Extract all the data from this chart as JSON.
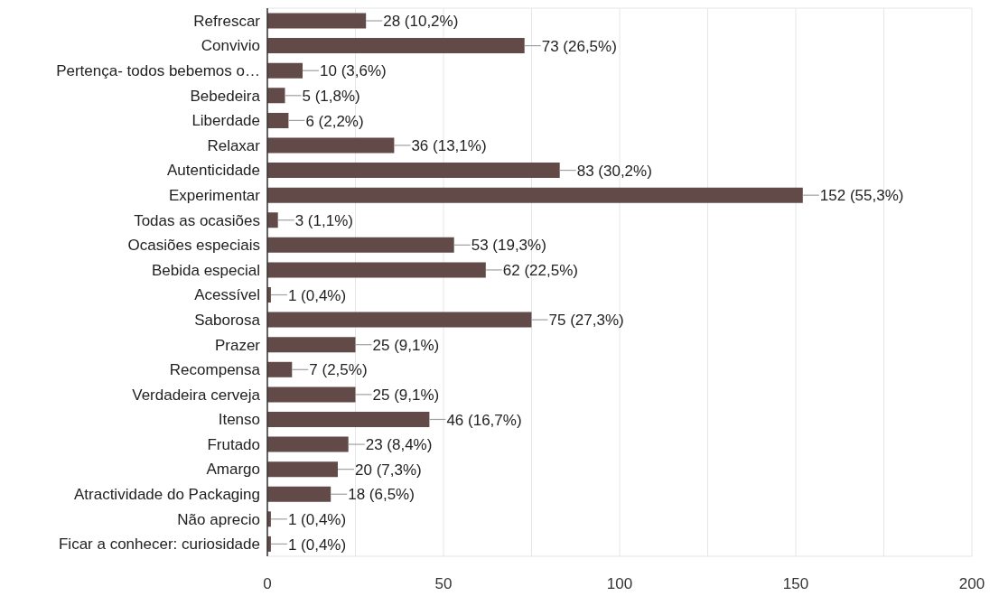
{
  "chart_data": {
    "type": "bar",
    "orientation": "horizontal",
    "categories": [
      "Refrescar",
      "Convivio",
      "Pertença- todos bebemos o…",
      "Bebedeira",
      "Liberdade",
      "Relaxar",
      "Autenticidade",
      "Experimentar",
      "Todas as ocasiões",
      "Ocasiões especiais",
      "Bebida especial",
      "Acessível",
      "Saborosa",
      "Prazer",
      "Recompensa",
      "Verdadeira cerveja",
      "Itenso",
      "Frutado",
      "Amargo",
      "Atractividade do Packaging",
      "Não aprecio",
      "Ficar a conhecer: curiosidade"
    ],
    "values": [
      28,
      73,
      10,
      5,
      6,
      36,
      83,
      152,
      3,
      53,
      62,
      1,
      75,
      25,
      7,
      25,
      46,
      23,
      20,
      18,
      1,
      1
    ],
    "value_labels": [
      "28 (10,2%)",
      "73 (26,5%)",
      "10 (3,6%)",
      "5 (1,8%)",
      "6 (2,2%)",
      "36 (13,1%)",
      "83 (30,2%)",
      "152 (55,3%)",
      "3 (1,1%)",
      "53 (19,3%)",
      "62 (22,5%)",
      "1 (0,4%)",
      "75 (27,3%)",
      "25 (9,1%)",
      "7 (2,5%)",
      "25 (9,1%)",
      "46 (16,7%)",
      "23 (8,4%)",
      "20 (7,3%)",
      "18 (6,5%)",
      "1 (0,4%)",
      "1 (0,4%)"
    ],
    "color": "#614a47",
    "xlim": [
      0,
      200
    ],
    "xticks": [
      0,
      {
        "value": 25,
        "label": null
      },
      50,
      {
        "value": 75,
        "label": null
      },
      100,
      {
        "value": 125,
        "label": null
      },
      150,
      {
        "value": 175,
        "label": null
      },
      200
    ],
    "grid": "x"
  }
}
